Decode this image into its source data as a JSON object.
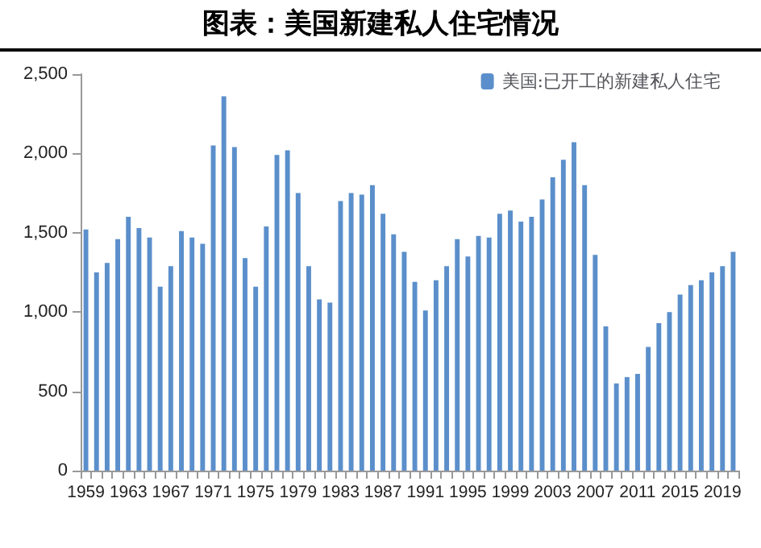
{
  "chart_data": {
    "type": "bar",
    "title": "图表：美国新建私人住宅情况",
    "categories": [
      "1959",
      null,
      null,
      null,
      "1963",
      null,
      null,
      null,
      "1967",
      null,
      null,
      null,
      "1971",
      null,
      null,
      null,
      "1975",
      null,
      null,
      null,
      "1979",
      null,
      null,
      null,
      "1983",
      null,
      null,
      null,
      "1987",
      null,
      null,
      null,
      "1991",
      null,
      null,
      null,
      "1995",
      null,
      null,
      null,
      "1999",
      null,
      null,
      null,
      "2003",
      null,
      null,
      null,
      "2007",
      null,
      null,
      null,
      "2011",
      null,
      null,
      null,
      "2015",
      null,
      null,
      null,
      "2019",
      null
    ],
    "series": [
      {
        "name": "美国:已开工的新建私人住宅",
        "color": "#5b8fcb",
        "values": [
          1520,
          1250,
          1310,
          1460,
          1600,
          1530,
          1470,
          1160,
          1290,
          1510,
          1470,
          1430,
          2050,
          2360,
          2040,
          1340,
          1160,
          1540,
          1990,
          2020,
          1750,
          1290,
          1080,
          1060,
          1700,
          1750,
          1740,
          1800,
          1620,
          1490,
          1380,
          1190,
          1010,
          1200,
          1290,
          1460,
          1350,
          1480,
          1470,
          1620,
          1640,
          1570,
          1600,
          1710,
          1850,
          1960,
          2070,
          1800,
          1360,
          910,
          550,
          590,
          610,
          780,
          930,
          1000,
          1110,
          1170,
          1200,
          1250,
          1290,
          1380
        ]
      }
    ],
    "ylim": [
      0,
      2500
    ],
    "yticks": [
      {
        "value": 0,
        "label": "0"
      },
      {
        "value": 500,
        "label": "500"
      },
      {
        "value": 1000,
        "label": "1,000"
      },
      {
        "value": 1500,
        "label": "1,500"
      },
      {
        "value": 2000,
        "label": "2,000"
      },
      {
        "value": 2500,
        "label": "2,500"
      }
    ],
    "grid": false,
    "legend": "top right"
  }
}
